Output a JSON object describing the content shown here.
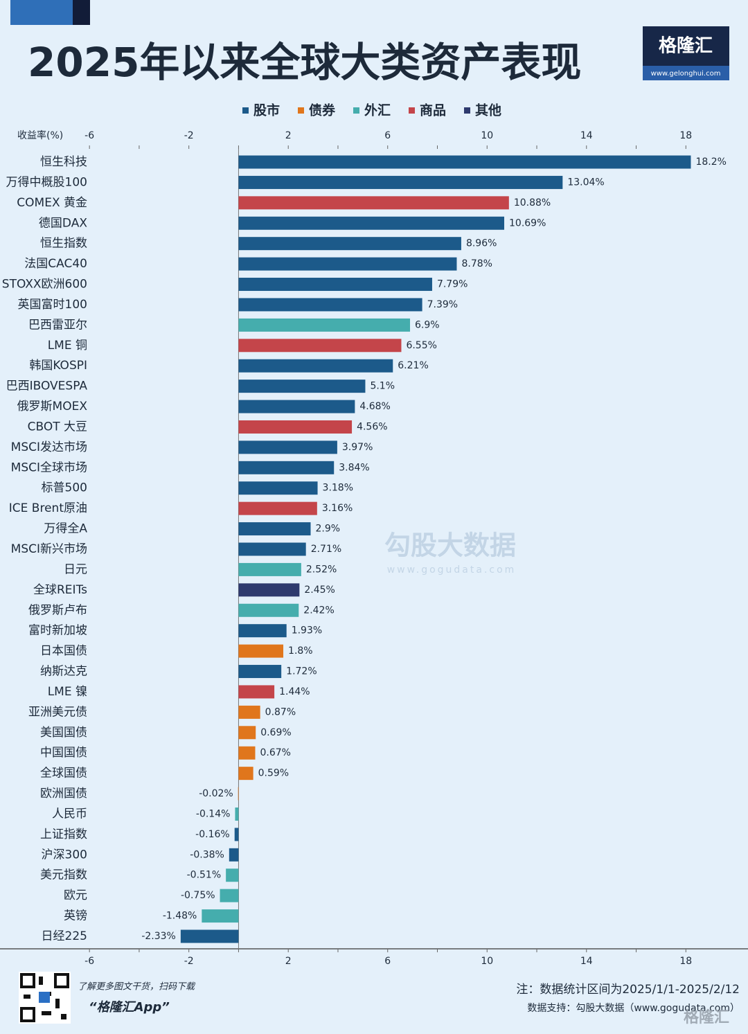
{
  "chart_data": {
    "type": "barh",
    "title": "2025年以来全球大类资产表现",
    "xlabel": "收益率(%)",
    "categories": [
      "恒生科技",
      "万得中概股100",
      "COMEX 黄金",
      "德国DAX",
      "恒生指数",
      "法国CAC40",
      "STOXX欧洲600",
      "英国富时100",
      "巴西雷亚尔",
      "LME 铜",
      "韩国KOSPI",
      "巴西IBOVESPA",
      "俄罗斯MOEX",
      "CBOT 大豆",
      "MSCI发达市场",
      "MSCI全球市场",
      "标普500",
      "ICE Brent原油",
      "万得全A",
      "MSCI新兴市场",
      "日元",
      "全球REITs",
      "俄罗斯卢布",
      "富时新加坡",
      "日本国债",
      "纳斯达克",
      "LME 镍",
      "亚洲美元债",
      "美国国债",
      "中国国债",
      "全球国债",
      "欧洲国债",
      "人民币",
      "上证指数",
      "沪深300",
      "美元指数",
      "欧元",
      "英镑",
      "日经225"
    ],
    "series": [
      {
        "name": "股市",
        "color": "#1c5a8a",
        "values": [
          18.2,
          13.04,
          null,
          10.69,
          8.96,
          8.78,
          7.79,
          7.39,
          null,
          null,
          6.21,
          5.1,
          4.68,
          null,
          3.97,
          3.84,
          3.18,
          null,
          2.9,
          2.71,
          null,
          null,
          null,
          1.93,
          null,
          1.72,
          null,
          null,
          null,
          null,
          null,
          null,
          null,
          -0.16,
          -0.38,
          null,
          null,
          null,
          -2.33
        ],
        "value_labels": [
          "18.2%",
          "13.04%",
          null,
          "10.69%",
          "8.96%",
          "8.78%",
          "7.79%",
          "7.39%",
          null,
          null,
          "6.21%",
          "5.1%",
          "4.68%",
          null,
          "3.97%",
          "3.84%",
          "3.18%",
          null,
          "2.9%",
          "2.71%",
          null,
          null,
          null,
          "1.93%",
          null,
          "1.72%",
          null,
          null,
          null,
          null,
          null,
          null,
          null,
          "-0.16%",
          "-0.38%",
          null,
          null,
          null,
          "-2.33%"
        ]
      },
      {
        "name": "债券",
        "color": "#e0761c",
        "values": [
          null,
          null,
          null,
          null,
          null,
          null,
          null,
          null,
          null,
          null,
          null,
          null,
          null,
          null,
          null,
          null,
          null,
          null,
          null,
          null,
          null,
          null,
          null,
          null,
          1.8,
          null,
          null,
          0.87,
          0.69,
          0.67,
          0.59,
          -0.02,
          null,
          null,
          null,
          null,
          null,
          null,
          null
        ],
        "value_labels": [
          null,
          null,
          null,
          null,
          null,
          null,
          null,
          null,
          null,
          null,
          null,
          null,
          null,
          null,
          null,
          null,
          null,
          null,
          null,
          null,
          null,
          null,
          null,
          null,
          "1.8%",
          null,
          null,
          "0.87%",
          "0.69%",
          "0.67%",
          "0.59%",
          "-0.02%",
          null,
          null,
          null,
          null,
          null,
          null,
          null
        ]
      },
      {
        "name": "外汇",
        "color": "#45adad",
        "values": [
          null,
          null,
          null,
          null,
          null,
          null,
          null,
          null,
          6.9,
          null,
          null,
          null,
          null,
          null,
          null,
          null,
          null,
          null,
          null,
          null,
          2.52,
          null,
          2.42,
          null,
          null,
          null,
          null,
          null,
          null,
          null,
          null,
          null,
          -0.14,
          null,
          null,
          -0.51,
          -0.75,
          -1.48,
          null
        ],
        "value_labels": [
          null,
          null,
          null,
          null,
          null,
          null,
          null,
          null,
          "6.9%",
          null,
          null,
          null,
          null,
          null,
          null,
          null,
          null,
          null,
          null,
          null,
          "2.52%",
          null,
          "2.42%",
          null,
          null,
          null,
          null,
          null,
          null,
          null,
          null,
          null,
          "-0.14%",
          null,
          null,
          "-0.51%",
          "-0.75%",
          "-1.48%",
          null
        ]
      },
      {
        "name": "商品",
        "color": "#c4454a",
        "values": [
          null,
          null,
          10.88,
          null,
          null,
          null,
          null,
          null,
          null,
          6.55,
          null,
          null,
          null,
          4.56,
          null,
          null,
          null,
          3.16,
          null,
          null,
          null,
          null,
          null,
          null,
          null,
          null,
          1.44,
          null,
          null,
          null,
          null,
          null,
          null,
          null,
          null,
          null,
          null,
          null,
          null
        ],
        "value_labels": [
          null,
          null,
          "10.88%",
          null,
          null,
          null,
          null,
          null,
          null,
          "6.55%",
          null,
          null,
          null,
          "4.56%",
          null,
          null,
          null,
          "3.16%",
          null,
          null,
          null,
          null,
          null,
          null,
          null,
          null,
          "1.44%",
          null,
          null,
          null,
          null,
          null,
          null,
          null,
          null,
          null,
          null,
          null,
          null
        ]
      },
      {
        "name": "其他",
        "color": "#2e3a6e",
        "values": [
          null,
          null,
          null,
          null,
          null,
          null,
          null,
          null,
          null,
          null,
          null,
          null,
          null,
          null,
          null,
          null,
          null,
          null,
          null,
          null,
          null,
          2.45,
          null,
          null,
          null,
          null,
          null,
          null,
          null,
          null,
          null,
          null,
          null,
          null,
          null,
          null,
          null,
          null,
          null
        ],
        "value_labels": [
          null,
          null,
          null,
          null,
          null,
          null,
          null,
          null,
          null,
          null,
          null,
          null,
          null,
          null,
          null,
          null,
          null,
          null,
          null,
          null,
          null,
          "2.45%",
          null,
          null,
          null,
          null,
          null,
          null,
          null,
          null,
          null,
          null,
          null,
          null,
          null,
          null,
          null,
          null,
          null
        ]
      }
    ],
    "xlim": [
      -9.6,
      20.5
    ],
    "xticks": [
      -6,
      -2,
      2,
      6,
      10,
      14,
      18
    ],
    "xminor_ticks": [
      -4,
      0,
      4,
      8,
      12,
      16
    ],
    "legend": "top"
  },
  "branding": {
    "logo": "格隆汇",
    "url": "www.gelonghui.com",
    "watermark": "勾股大数据",
    "watermark_url": "www.gogudata.com"
  },
  "footer": {
    "promo": "了解更多图文干货，扫码下载",
    "app": "“格隆汇App”",
    "note": "注：数据统计区间为2025/1/1-2025/2/12",
    "source": "数据支持：勾股大数据（www.gogudata.com）",
    "corner_logo": "格隆汇"
  }
}
